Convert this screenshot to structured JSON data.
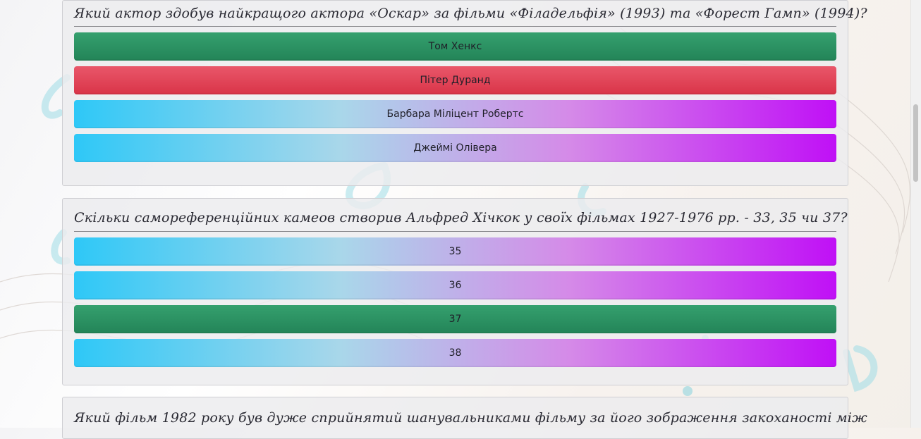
{
  "questions": [
    {
      "text": "Який актор здобув найкращого актора «Оскар» за фільми «Філадельфія» (1993) та «Форест Гамп» (1994)?",
      "answers": [
        {
          "label": "Том Хенкс",
          "state": "correct"
        },
        {
          "label": "Пітер Дуранд",
          "state": "wrong"
        },
        {
          "label": "Барбара Міліцент Робертс",
          "state": "neutral"
        },
        {
          "label": "Джеймі Олівера",
          "state": "neutral"
        }
      ]
    },
    {
      "text": "Скільки самореференційних камеов створив Альфред Хічкок у своїх фільмах 1927-1976 рр. - 33, 35 чи 37?",
      "answers": [
        {
          "label": "35",
          "state": "neutral"
        },
        {
          "label": "36",
          "state": "neutral"
        },
        {
          "label": "37",
          "state": "correct"
        },
        {
          "label": "38",
          "state": "neutral"
        }
      ]
    },
    {
      "text": "Який фільм 1982 року був дуже сприйнятий шанувальниками фільму за його зображення закоханості між"
    }
  ],
  "colors": {
    "correct": "#2a8f61",
    "wrong": "#df3f52",
    "neutral_start": "#2ec8f7",
    "neutral_end": "#c010f6"
  }
}
